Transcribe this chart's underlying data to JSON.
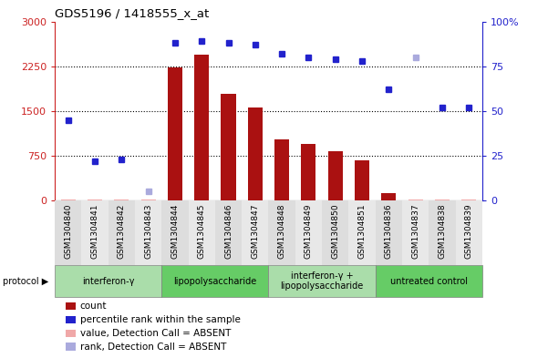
{
  "title": "GDS5196 / 1418555_x_at",
  "samples": [
    "GSM1304840",
    "GSM1304841",
    "GSM1304842",
    "GSM1304843",
    "GSM1304844",
    "GSM1304845",
    "GSM1304846",
    "GSM1304847",
    "GSM1304848",
    "GSM1304849",
    "GSM1304850",
    "GSM1304851",
    "GSM1304836",
    "GSM1304837",
    "GSM1304838",
    "GSM1304839"
  ],
  "bar_values": [
    18,
    22,
    20,
    16,
    2230,
    2450,
    1780,
    1560,
    1020,
    950,
    820,
    670,
    130,
    22,
    18,
    20
  ],
  "bar_absent": [
    true,
    true,
    true,
    true,
    false,
    false,
    false,
    false,
    false,
    false,
    false,
    false,
    false,
    true,
    true,
    true
  ],
  "rank_values": [
    45,
    22,
    23,
    5,
    88,
    89,
    88,
    87,
    82,
    80,
    79,
    78,
    62,
    80,
    52,
    52
  ],
  "rank_absent": [
    false,
    false,
    false,
    true,
    false,
    false,
    false,
    false,
    false,
    false,
    false,
    false,
    false,
    true,
    false,
    false
  ],
  "protocols": [
    {
      "label": "interferon-γ",
      "start": 0,
      "end": 4,
      "color": "#aaddaa"
    },
    {
      "label": "lipopolysaccharide",
      "start": 4,
      "end": 8,
      "color": "#66cc66"
    },
    {
      "label": "interferon-γ +\nlipopolysaccharide",
      "start": 8,
      "end": 12,
      "color": "#aaddaa"
    },
    {
      "label": "untreated control",
      "start": 12,
      "end": 16,
      "color": "#66cc66"
    }
  ],
  "ylim_left": [
    0,
    3000
  ],
  "ylim_right": [
    0,
    100
  ],
  "yticks_left": [
    0,
    750,
    1500,
    2250,
    3000
  ],
  "yticks_right": [
    0,
    25,
    50,
    75,
    100
  ],
  "bar_color_present": "#aa1111",
  "bar_color_absent": "#f0a8a8",
  "rank_color_present": "#2222cc",
  "rank_color_absent": "#aaaadd",
  "bg_color": "#ffffff",
  "legend_items": [
    {
      "label": "count",
      "color": "#aa1111"
    },
    {
      "label": "percentile rank within the sample",
      "color": "#2222cc"
    },
    {
      "label": "value, Detection Call = ABSENT",
      "color": "#f0a8a8"
    },
    {
      "label": "rank, Detection Call = ABSENT",
      "color": "#aaaadd"
    }
  ]
}
